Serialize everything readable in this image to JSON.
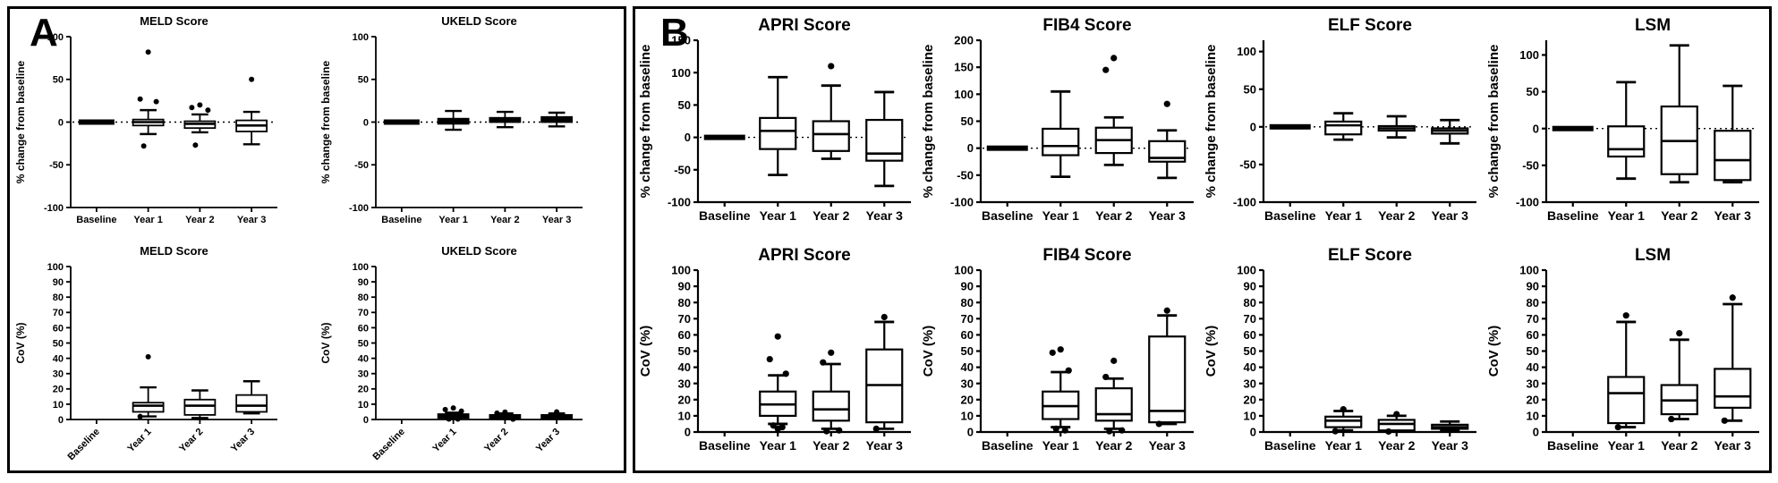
{
  "figure": {
    "panel_a_label": "A",
    "panel_b_label": "B",
    "ink_color": "#000000",
    "background_color": "#ffffff"
  },
  "chart_data": [
    {
      "panel": "A",
      "row": "top",
      "type": "box",
      "title": "MELD Score",
      "ylabel": "% change from baseline",
      "ylim": [
        -100,
        100
      ],
      "yticks": [
        -100,
        -50,
        0,
        50,
        100
      ],
      "categories": [
        "Baseline",
        "Year 1",
        "Year 2",
        "Year 3"
      ],
      "rotate_xlabels": false,
      "zero_dotted": true,
      "baseline_flat": true,
      "boxes": [
        null,
        {
          "lo": -14,
          "q1": -4,
          "med": 0,
          "q3": 3,
          "hi": 14,
          "outliers": [
            82,
            27,
            24,
            -28
          ]
        },
        {
          "lo": -12,
          "q1": -7,
          "med": -2,
          "q3": 1,
          "hi": 9,
          "outliers": [
            20,
            17,
            14,
            -27
          ]
        },
        {
          "lo": -26,
          "q1": -11,
          "med": -4,
          "q3": 2,
          "hi": 12,
          "outliers": [
            50
          ]
        }
      ]
    },
    {
      "panel": "A",
      "row": "top",
      "type": "box",
      "title": "UKELD Score",
      "ylabel": "% change from baseline",
      "ylim": [
        -100,
        100
      ],
      "yticks": [
        -100,
        -50,
        0,
        50,
        100
      ],
      "categories": [
        "Baseline",
        "Year 1",
        "Year 2",
        "Year 3"
      ],
      "rotate_xlabels": false,
      "zero_dotted": true,
      "baseline_flat": true,
      "boxes": [
        null,
        {
          "lo": -9,
          "q1": -2,
          "med": 1,
          "q3": 4,
          "hi": 13,
          "solid": true
        },
        {
          "lo": -6,
          "q1": 0,
          "med": 2,
          "q3": 5,
          "hi": 12,
          "solid": true
        },
        {
          "lo": -5,
          "q1": 0,
          "med": 2,
          "q3": 6,
          "hi": 11,
          "solid": true
        }
      ]
    },
    {
      "panel": "A",
      "row": "bottom",
      "type": "box",
      "title": "MELD Score",
      "ylabel": "CoV (%)",
      "ylim": [
        0,
        100
      ],
      "yticks": [
        0,
        10,
        20,
        30,
        40,
        50,
        60,
        70,
        80,
        90,
        100
      ],
      "categories": [
        "Baseline",
        "Year 1",
        "Year 2",
        "Year 3"
      ],
      "rotate_xlabels": true,
      "zero_dotted": false,
      "baseline_flat": false,
      "boxes": [
        null,
        {
          "lo": 2,
          "q1": 5,
          "med": 9,
          "q3": 11,
          "hi": 21,
          "outliers": [
            41,
            2
          ]
        },
        {
          "lo": 1,
          "q1": 3,
          "med": 9,
          "q3": 13,
          "hi": 19
        },
        {
          "lo": 4,
          "q1": 5,
          "med": 9,
          "q3": 16,
          "hi": 25
        }
      ]
    },
    {
      "panel": "A",
      "row": "bottom",
      "type": "box",
      "title": "UKELD Score",
      "ylabel": "CoV (%)",
      "ylim": [
        0,
        100
      ],
      "yticks": [
        0,
        10,
        20,
        30,
        40,
        50,
        60,
        70,
        80,
        90,
        100
      ],
      "categories": [
        "Baseline",
        "Year 1",
        "Year 2",
        "Year 3"
      ],
      "rotate_xlabels": true,
      "zero_dotted": false,
      "baseline_flat": false,
      "boxes": [
        null,
        {
          "lo": 0.5,
          "q1": 1,
          "med": 2,
          "q3": 3.5,
          "hi": 4.5,
          "outliers": [
            7.5,
            6.5,
            5.5,
            0.3,
            0.3
          ],
          "solid": true
        },
        {
          "lo": 0.3,
          "q1": 0.8,
          "med": 1.5,
          "q3": 3,
          "hi": 4,
          "outliers": [
            4.8,
            4.2,
            0.2
          ],
          "solid": true
        },
        {
          "lo": 0.3,
          "q1": 0.8,
          "med": 1.5,
          "q3": 3,
          "hi": 4,
          "outliers": [
            5
          ],
          "solid": true
        }
      ]
    },
    {
      "panel": "B",
      "row": "top",
      "type": "box",
      "title": "APRI Score",
      "ylabel": "% change from baseline",
      "ylim": [
        -100,
        150
      ],
      "yticks": [
        -100,
        -50,
        0,
        50,
        100,
        150
      ],
      "categories": [
        "Baseline",
        "Year 1",
        "Year 2",
        "Year 3"
      ],
      "rotate_xlabels": false,
      "zero_dotted": true,
      "baseline_flat": true,
      "boxes": [
        null,
        {
          "lo": -58,
          "q1": -18,
          "med": 10,
          "q3": 30,
          "hi": 93
        },
        {
          "lo": -33,
          "q1": -21,
          "med": 5,
          "q3": 25,
          "hi": 80,
          "outliers": [
            110
          ]
        },
        {
          "lo": -75,
          "q1": -36,
          "med": -25,
          "q3": 27,
          "hi": 70
        }
      ]
    },
    {
      "panel": "B",
      "row": "top",
      "type": "box",
      "title": "FIB4 Score",
      "ylabel": "% change from baseline",
      "ylim": [
        -100,
        200
      ],
      "yticks": [
        -100,
        -50,
        0,
        50,
        100,
        150,
        200
      ],
      "categories": [
        "Baseline",
        "Year 1",
        "Year 2",
        "Year 3"
      ],
      "rotate_xlabels": false,
      "zero_dotted": true,
      "baseline_flat": true,
      "boxes": [
        null,
        {
          "lo": -53,
          "q1": -13,
          "med": 4,
          "q3": 36,
          "hi": 105
        },
        {
          "lo": -31,
          "q1": -9,
          "med": 15,
          "q3": 38,
          "hi": 57,
          "outliers": [
            167,
            145
          ]
        },
        {
          "lo": -55,
          "q1": -25,
          "med": -18,
          "q3": 13,
          "hi": 33,
          "outliers": [
            82
          ]
        }
      ]
    },
    {
      "panel": "B",
      "row": "top",
      "type": "box",
      "title": "ELF Score",
      "ylabel": "% change from baseline",
      "ylim": [
        -100,
        115
      ],
      "yticks": [
        -100,
        -50,
        0,
        50,
        100
      ],
      "categories": [
        "Baseline",
        "Year 1",
        "Year 2",
        "Year 3"
      ],
      "rotate_xlabels": false,
      "zero_dotted": true,
      "baseline_flat": true,
      "boxes": [
        null,
        {
          "lo": -17,
          "q1": -10,
          "med": 2,
          "q3": 7,
          "hi": 18
        },
        {
          "lo": -14,
          "q1": -5,
          "med": -2,
          "q3": 1,
          "hi": 14
        },
        {
          "lo": -22,
          "q1": -9,
          "med": -5,
          "q3": -2,
          "hi": 9
        }
      ]
    },
    {
      "panel": "B",
      "row": "top",
      "type": "box",
      "title": "LSM",
      "ylabel": "% change from baseline",
      "ylim": [
        -100,
        120
      ],
      "yticks": [
        -100,
        -50,
        0,
        50,
        100
      ],
      "categories": [
        "Baseline",
        "Year 1",
        "Year 2",
        "Year 3"
      ],
      "rotate_xlabels": false,
      "zero_dotted": true,
      "baseline_flat": true,
      "boxes": [
        null,
        {
          "lo": -68,
          "q1": -38,
          "med": -28,
          "q3": 3,
          "hi": 63
        },
        {
          "lo": -73,
          "q1": -62,
          "med": -17,
          "q3": 30,
          "hi": 113
        },
        {
          "lo": -73,
          "q1": -70,
          "med": -43,
          "q3": -3,
          "hi": 58
        }
      ]
    },
    {
      "panel": "B",
      "row": "bottom",
      "type": "box",
      "title": "APRI Score",
      "ylabel": "CoV (%)",
      "ylim": [
        0,
        100
      ],
      "yticks": [
        0,
        10,
        20,
        30,
        40,
        50,
        60,
        70,
        80,
        90,
        100
      ],
      "categories": [
        "Baseline",
        "Year 1",
        "Year 2",
        "Year 3"
      ],
      "rotate_xlabels": false,
      "zero_dotted": false,
      "baseline_flat": false,
      "boxes": [
        null,
        {
          "lo": 5,
          "q1": 10,
          "med": 17,
          "q3": 25,
          "hi": 35,
          "outliers": [
            59,
            45,
            36,
            4,
            3,
            2
          ]
        },
        {
          "lo": 2,
          "q1": 7,
          "med": 14,
          "q3": 25,
          "hi": 42,
          "outliers": [
            49,
            43,
            1,
            0.5
          ]
        },
        {
          "lo": 2,
          "q1": 6,
          "med": 29,
          "q3": 51,
          "hi": 68,
          "outliers": [
            71,
            2
          ]
        }
      ]
    },
    {
      "panel": "B",
      "row": "bottom",
      "type": "box",
      "title": "FIB4 Score",
      "ylabel": "CoV (%)",
      "ylim": [
        0,
        100
      ],
      "yticks": [
        0,
        10,
        20,
        30,
        40,
        50,
        60,
        70,
        80,
        90,
        100
      ],
      "categories": [
        "Baseline",
        "Year 1",
        "Year 2",
        "Year 3"
      ],
      "rotate_xlabels": false,
      "zero_dotted": false,
      "baseline_flat": false,
      "boxes": [
        null,
        {
          "lo": 3,
          "q1": 8,
          "med": 16,
          "q3": 25,
          "hi": 37,
          "outliers": [
            51,
            49,
            38,
            2,
            1
          ]
        },
        {
          "lo": 2,
          "q1": 7,
          "med": 11,
          "q3": 27,
          "hi": 33,
          "outliers": [
            44,
            34,
            1,
            0.5
          ]
        },
        {
          "lo": 5,
          "q1": 6,
          "med": 13,
          "q3": 59,
          "hi": 72,
          "outliers": [
            75,
            5
          ]
        }
      ]
    },
    {
      "panel": "B",
      "row": "bottom",
      "type": "box",
      "title": "ELF Score",
      "ylabel": "CoV (%)",
      "ylim": [
        0,
        100
      ],
      "yticks": [
        0,
        10,
        20,
        30,
        40,
        50,
        60,
        70,
        80,
        90,
        100
      ],
      "categories": [
        "Baseline",
        "Year 1",
        "Year 2",
        "Year 3"
      ],
      "rotate_xlabels": false,
      "zero_dotted": false,
      "baseline_flat": false,
      "boxes": [
        null,
        {
          "lo": 1,
          "q1": 3,
          "med": 7,
          "q3": 9.5,
          "hi": 13,
          "outliers": [
            14,
            0.5
          ]
        },
        {
          "lo": 0.5,
          "q1": 1,
          "med": 5,
          "q3": 7.5,
          "hi": 10,
          "outliers": [
            11,
            0.3
          ]
        },
        {
          "lo": 1,
          "q1": 2,
          "med": 3,
          "q3": 4.5,
          "hi": 6.5
        }
      ]
    },
    {
      "panel": "B",
      "row": "bottom",
      "type": "box",
      "title": "LSM",
      "ylabel": "CoV (%)",
      "ylim": [
        0,
        100
      ],
      "yticks": [
        0,
        10,
        20,
        30,
        40,
        50,
        60,
        70,
        80,
        90,
        100
      ],
      "categories": [
        "Baseline",
        "Year 1",
        "Year 2",
        "Year 3"
      ],
      "rotate_xlabels": false,
      "zero_dotted": false,
      "baseline_flat": false,
      "boxes": [
        null,
        {
          "lo": 3,
          "q1": 5.5,
          "med": 24,
          "q3": 34,
          "hi": 68,
          "outliers": [
            72,
            3
          ]
        },
        {
          "lo": 8,
          "q1": 11,
          "med": 19.5,
          "q3": 29,
          "hi": 57,
          "outliers": [
            61,
            8
          ]
        },
        {
          "lo": 7,
          "q1": 15,
          "med": 22,
          "q3": 39,
          "hi": 79,
          "outliers": [
            83,
            7
          ]
        }
      ]
    }
  ]
}
